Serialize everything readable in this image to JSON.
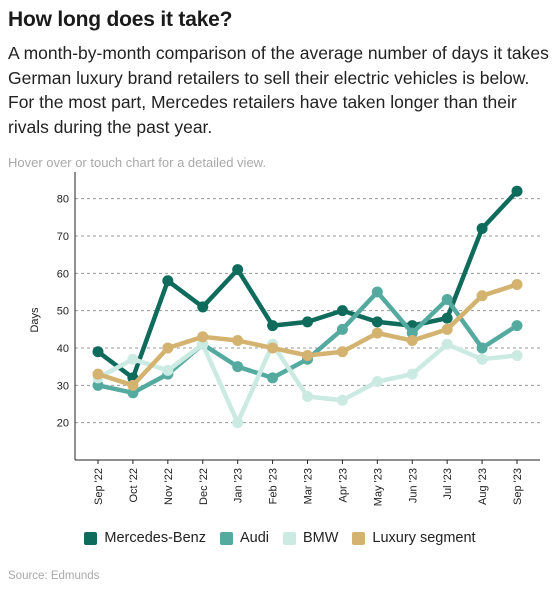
{
  "title": "How long does it take?",
  "description": "A month-by-month comparison of the average number of days it takes German luxury brand retailers to sell their electric vehicles is below. For the most part, Mercedes retailers have taken longer than their rivals during the past year.",
  "hint": "Hover over or touch chart for a detailed view.",
  "source": "Source: Edmunds",
  "chart_data": {
    "type": "line",
    "title": "",
    "xlabel": "",
    "ylabel": "Days",
    "categories": [
      "Sep '22",
      "Oct '22",
      "Nov '22",
      "Dec '22",
      "Jan '23",
      "Feb '23",
      "Mar '23",
      "Apr '23",
      "May '23",
      "Jun '23",
      "Jul '23",
      "Aug '23",
      "Sep '23"
    ],
    "yticks": [
      20,
      30,
      40,
      50,
      60,
      70,
      80
    ],
    "ylim": [
      10,
      85
    ],
    "grid": true,
    "legend_position": "bottom",
    "series": [
      {
        "name": "Mercedes-Benz",
        "color": "#0f6b5c",
        "values": [
          39,
          32,
          58,
          51,
          61,
          46,
          47,
          50,
          47,
          46,
          48,
          72,
          82
        ]
      },
      {
        "name": "Audi",
        "color": "#55aaa0",
        "values": [
          30,
          28,
          33,
          41,
          35,
          32,
          37,
          45,
          55,
          44,
          53,
          40,
          46
        ]
      },
      {
        "name": "BMW",
        "color": "#cbeae2",
        "values": [
          32,
          37,
          34,
          41,
          20,
          41,
          27,
          26,
          31,
          33,
          41,
          37,
          38
        ]
      },
      {
        "name": "Luxury segment",
        "color": "#d4b26f",
        "values": [
          33,
          30,
          40,
          43,
          42,
          40,
          38,
          39,
          44,
          42,
          45,
          54,
          57
        ]
      }
    ]
  }
}
